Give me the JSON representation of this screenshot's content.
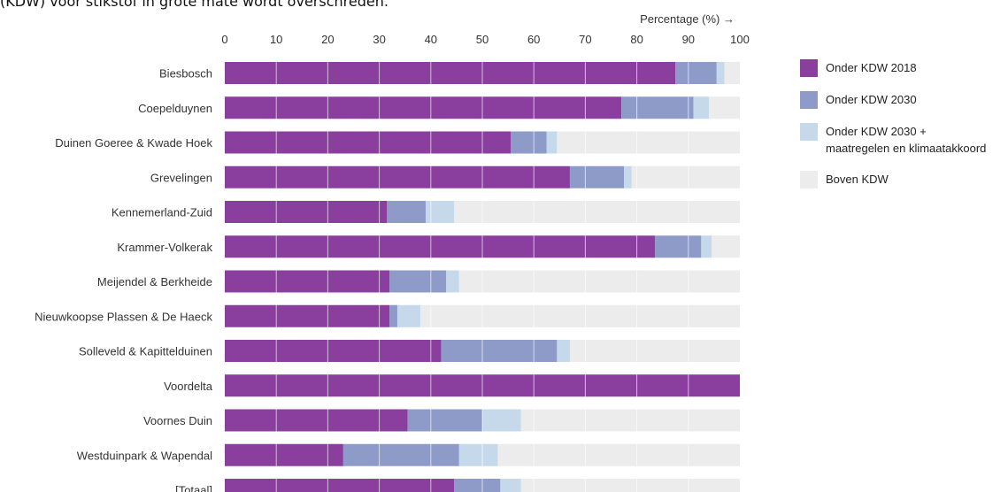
{
  "intro_text": "(KDW) voor stikstof in grote mate wordt overschreden.",
  "colors": {
    "onder_2018": "#8a3f9f",
    "onder_2030": "#8e9bc9",
    "onder_2030_plus": "#c5d9ea",
    "boven": "#ececec",
    "axis_text": "#333333"
  },
  "legend": [
    {
      "label": "Onder KDW 2018",
      "color": "#8a3f9f"
    },
    {
      "label": "Onder KDW 2030",
      "color": "#8e9bc9"
    },
    {
      "label": "Onder KDW 2030 +\nmaatregelen en klimaatakkoord",
      "color": "#c5d9ea"
    },
    {
      "label": "Boven KDW",
      "color": "#ececec"
    }
  ],
  "chart_data": {
    "type": "bar",
    "orientation": "horizontal",
    "stacked": true,
    "xlabel": "Percentage (%) →",
    "xlim": [
      0,
      100
    ],
    "ticks": [
      "0",
      "10",
      "20",
      "30",
      "40",
      "50",
      "60",
      "70",
      "80",
      "90",
      "100"
    ],
    "categories": [
      "Biesbosch",
      "Coepelduynen",
      "Duinen Goeree & Kwade Hoek",
      "Grevelingen",
      "Kennemerland-Zuid",
      "Krammer-Volkerak",
      "Meijendel & Berkheide",
      "Nieuwkoopse Plassen & De Haeck",
      "Solleveld & Kapittelduinen",
      "Voordelta",
      "Voornes Duin",
      "Westduinpark & Wapendal",
      "[Totaal]"
    ],
    "series": [
      {
        "name": "Onder KDW 2018",
        "values": [
          87.5,
          77,
          55.5,
          67,
          31.5,
          83.5,
          32,
          32,
          42,
          100,
          35.5,
          23,
          44.5
        ]
      },
      {
        "name": "Onder KDW 2030",
        "values": [
          8,
          14,
          7,
          10.5,
          7.5,
          9,
          11,
          1.5,
          22.5,
          0,
          14.5,
          22.5,
          9
        ]
      },
      {
        "name": "Onder KDW 2030 + maatregelen en klimaatakkoord",
        "values": [
          1.5,
          3,
          2,
          1.5,
          5.5,
          2,
          2.5,
          4.5,
          2.5,
          0,
          7.5,
          7.5,
          4
        ]
      },
      {
        "name": "Boven KDW",
        "values": [
          3,
          6,
          35.5,
          21,
          55.5,
          5.5,
          54.5,
          62,
          33,
          0,
          42.5,
          47,
          42.5
        ]
      }
    ]
  }
}
